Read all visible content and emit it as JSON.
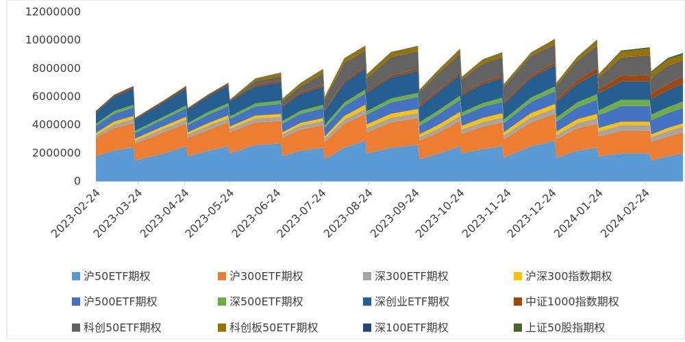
{
  "chart_data": {
    "type": "stacked_area",
    "x": [
      "2023-02-24",
      "2023-03-08",
      "2023-03-21",
      "2023-03-22",
      "2023-04-10",
      "2023-04-25",
      "2023-04-26",
      "2023-05-10",
      "2023-05-23",
      "2023-05-24",
      "2023-06-10",
      "2023-06-27",
      "2023-06-28",
      "2023-07-10",
      "2023-07-25",
      "2023-07-26",
      "2023-08-08",
      "2023-08-22",
      "2023-08-23",
      "2023-09-08",
      "2023-09-26",
      "2023-09-27",
      "2023-10-10",
      "2023-10-24",
      "2023-10-25",
      "2023-11-08",
      "2023-11-21",
      "2023-11-22",
      "2023-12-10",
      "2023-12-26",
      "2023-12-27",
      "2024-01-10",
      "2024-01-23",
      "2024-01-24",
      "2024-02-08",
      "2024-02-27",
      "2024-02-28",
      "2024-03-10",
      "2024-03-20"
    ],
    "xlim": [
      "2023-02-24",
      "2024-03-20"
    ],
    "xticks": [
      "2023-02-24",
      "2023-03-24",
      "2023-04-24",
      "2023-05-24",
      "2023-06-24",
      "2023-07-24",
      "2023-08-24",
      "2023-09-24",
      "2023-10-24",
      "2023-11-24",
      "2023-12-24",
      "2024-01-24",
      "2024-02-24"
    ],
    "ylim": [
      0,
      12000000
    ],
    "yticks": [
      0,
      2000000,
      4000000,
      6000000,
      8000000,
      10000000,
      12000000
    ],
    "series": [
      {
        "name": "沪50ETF期权",
        "color": "#5b9bd5",
        "values": [
          1800000,
          2200000,
          2450000,
          1500000,
          2000000,
          2500000,
          1800000,
          2200000,
          2500000,
          2000000,
          2600000,
          2700000,
          1800000,
          2200000,
          2400000,
          1600000,
          2400000,
          2900000,
          2000000,
          2400000,
          2600000,
          1600000,
          2000000,
          2500000,
          2000000,
          2300000,
          2500000,
          1700000,
          2500000,
          2900000,
          1700000,
          2200000,
          2400000,
          1800000,
          2000000,
          2000000,
          1500000,
          1800000,
          2000000
        ]
      },
      {
        "name": "沪300ETF期权",
        "color": "#ed7d31",
        "values": [
          1300000,
          1600000,
          1700000,
          1200000,
          1500000,
          1600000,
          1300000,
          1500000,
          1700000,
          1500000,
          1600000,
          1600000,
          1300000,
          1500000,
          1600000,
          1200000,
          1700000,
          1900000,
          1500000,
          1800000,
          1900000,
          1300000,
          1500000,
          1800000,
          1400000,
          1600000,
          1700000,
          1300000,
          1700000,
          1900000,
          1300000,
          1600000,
          1700000,
          1400000,
          1600000,
          1600000,
          1300000,
          1400000,
          1500000
        ]
      },
      {
        "name": "深300ETF期权",
        "color": "#a5a5a5",
        "values": [
          200000,
          250000,
          300000,
          200000,
          250000,
          300000,
          250000,
          280000,
          300000,
          250000,
          280000,
          300000,
          250000,
          280000,
          300000,
          250000,
          300000,
          350000,
          300000,
          330000,
          350000,
          250000,
          300000,
          350000,
          300000,
          330000,
          350000,
          280000,
          350000,
          400000,
          300000,
          350000,
          400000,
          350000,
          400000,
          400000,
          350000,
          380000,
          400000
        ]
      },
      {
        "name": "沪深300指数期权",
        "color": "#ffc000",
        "values": [
          150000,
          200000,
          200000,
          150000,
          180000,
          200000,
          150000,
          180000,
          200000,
          150000,
          200000,
          200000,
          150000,
          180000,
          200000,
          150000,
          250000,
          300000,
          250000,
          280000,
          300000,
          200000,
          250000,
          300000,
          250000,
          280000,
          300000,
          220000,
          300000,
          300000,
          250000,
          280000,
          300000,
          250000,
          250000,
          250000,
          200000,
          220000,
          230000
        ]
      },
      {
        "name": "沪500ETF期权",
        "color": "#4472c4",
        "values": [
          500000,
          550000,
          600000,
          400000,
          500000,
          600000,
          500000,
          600000,
          650000,
          550000,
          650000,
          700000,
          600000,
          650000,
          700000,
          600000,
          700000,
          800000,
          700000,
          800000,
          850000,
          600000,
          750000,
          850000,
          700000,
          780000,
          800000,
          650000,
          800000,
          900000,
          700000,
          850000,
          1000000,
          900000,
          1100000,
          1100000,
          1000000,
          1050000,
          1100000
        ]
      },
      {
        "name": "深500ETF期权",
        "color": "#70ad47",
        "values": [
          150000,
          200000,
          200000,
          150000,
          180000,
          200000,
          150000,
          200000,
          220000,
          180000,
          220000,
          250000,
          200000,
          220000,
          250000,
          200000,
          250000,
          280000,
          250000,
          280000,
          300000,
          250000,
          280000,
          300000,
          250000,
          280000,
          300000,
          250000,
          300000,
          350000,
          300000,
          350000,
          400000,
          350000,
          450000,
          450000,
          400000,
          430000,
          450000
        ]
      },
      {
        "name": "深创业ETF期权",
        "color": "#255e91",
        "values": [
          800000,
          1000000,
          1150000,
          800000,
          1000000,
          1200000,
          950000,
          1100000,
          1250000,
          1050000,
          1200000,
          1300000,
          1000000,
          1200000,
          1300000,
          1000000,
          1400000,
          1500000,
          1300000,
          1500000,
          1550000,
          1100000,
          1300000,
          1500000,
          1200000,
          1350000,
          1400000,
          1100000,
          1400000,
          1500000,
          1100000,
          1300000,
          1500000,
          1200000,
          1300000,
          1300000,
          1100000,
          1200000,
          1250000
        ]
      },
      {
        "name": "中证1000指数期权",
        "color": "#9e480e",
        "values": [
          80000,
          100000,
          120000,
          80000,
          100000,
          130000,
          80000,
          100000,
          130000,
          100000,
          120000,
          130000,
          100000,
          120000,
          130000,
          100000,
          120000,
          150000,
          120000,
          140000,
          150000,
          120000,
          140000,
          160000,
          130000,
          150000,
          160000,
          130000,
          150000,
          200000,
          150000,
          250000,
          350000,
          300000,
          400000,
          450000,
          400000,
          450000,
          500000
        ]
      },
      {
        "name": "科创50ETF期权",
        "color": "#636363",
        "values": [
          0,
          0,
          0,
          0,
          0,
          0,
          0,
          0,
          0,
          0,
          250000,
          300000,
          300000,
          400000,
          800000,
          700000,
          1300000,
          1100000,
          900000,
          1300000,
          1250000,
          900000,
          1200000,
          1300000,
          1000000,
          1300000,
          1300000,
          1100000,
          1400000,
          1300000,
          1000000,
          1400000,
          1600000,
          800000,
          1300000,
          1400000,
          1100000,
          1300000,
          1150000
        ]
      },
      {
        "name": "科创板50ETF期权",
        "color": "#997300",
        "values": [
          0,
          0,
          0,
          0,
          0,
          0,
          0,
          0,
          0,
          0,
          150000,
          200000,
          150000,
          200000,
          250000,
          180000,
          280000,
          300000,
          250000,
          300000,
          300000,
          150000,
          200000,
          300000,
          150000,
          250000,
          300000,
          150000,
          200000,
          300000,
          180000,
          250000,
          350000,
          200000,
          400000,
          450000,
          350000,
          400000,
          400000
        ]
      },
      {
        "name": "深100ETF期权",
        "color": "#264478",
        "values": [
          20000,
          20000,
          20000,
          20000,
          20000,
          20000,
          20000,
          20000,
          20000,
          20000,
          20000,
          20000,
          20000,
          20000,
          20000,
          20000,
          20000,
          20000,
          20000,
          20000,
          20000,
          20000,
          20000,
          20000,
          20000,
          20000,
          20000,
          20000,
          20000,
          20000,
          20000,
          20000,
          20000,
          20000,
          20000,
          20000,
          20000,
          20000,
          20000
        ]
      },
      {
        "name": "上证50股指期权",
        "color": "#43682b",
        "values": [
          20000,
          30000,
          40000,
          20000,
          30000,
          40000,
          20000,
          30000,
          40000,
          20000,
          30000,
          30000,
          20000,
          30000,
          40000,
          20000,
          30000,
          40000,
          30000,
          40000,
          50000,
          30000,
          40000,
          40000,
          20000,
          30000,
          40000,
          20000,
          30000,
          50000,
          20000,
          30000,
          50000,
          50000,
          80000,
          100000,
          100000,
          120000,
          120000
        ]
      }
    ]
  }
}
